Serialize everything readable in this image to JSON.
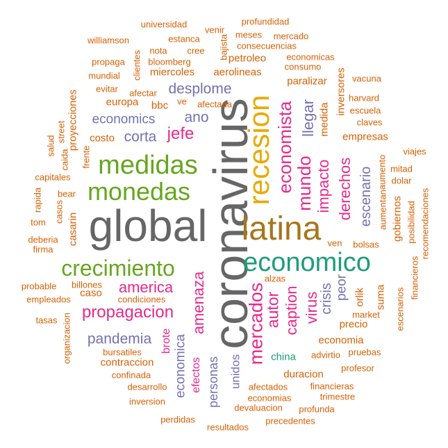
{
  "palette": {
    "gray": "#666666",
    "green": "#66a61e",
    "gold": "#e6ab02",
    "brown": "#a6761d",
    "teal": "#1b9e77",
    "magenta": "#e7298a",
    "purple": "#7570b3",
    "orange": "#d95f02"
  },
  "words": {
    "global": "global",
    "coronavirus": "coronavirus",
    "recesion": "recesion",
    "latina": "latina",
    "economico": "economico",
    "medidas": "medidas",
    "monedas": "monedas",
    "crecimiento": "crecimiento",
    "mercados": "mercados",
    "economista": "economista",
    "mundo": "mundo",
    "propagacion": "propagacion",
    "america": "america",
    "amenaza": "amenaza",
    "pandemia": "pandemia",
    "jefe": "jefe",
    "desplome": "desplome",
    "economics": "economics",
    "corta": "corta",
    "ano": "ano",
    "impacto": "impacto",
    "llegar": "llegar",
    "derechos": "derechos",
    "escenario": "escenario",
    "autor": "autor",
    "caption": "caption",
    "virus": "virus",
    "crisis": "crisis",
    "peor": "peor",
    "economica": "economica",
    "personas": "personas",
    "unidos": "unidos",
    "efectos": "efectos",
    "brote": "brote",
    "caso": "caso",
    "china": "china",
    "duracion": "duracion",
    "economia": "economia",
    "precio": "precio",
    "contraccion": "contraccion",
    "petroleo": "petroleo",
    "aerolineas": "aerolineas",
    "miercoles": "miercoles",
    "paralizar": "paralizar",
    "inversores": "inversores",
    "medida": "medida",
    "empresas": "empresas",
    "europa": "europa",
    "bbc": "bbc",
    "costo": "costo",
    "proyecciones": "proyecciones",
    "casarin": "casarin",
    "suma": "suma",
    "orlik": "orlik",
    "gobiernos": "gobiernos",
    "universidad": "universidad",
    "profundidad": "profundidad",
    "williamson": "williamson",
    "estanca": "estanca",
    "venir": "venir",
    "meses": "meses",
    "mercado": "mercado",
    "bajista": "bajista",
    "consecuencias": "consecuencias",
    "nota": "nota",
    "cree": "cree",
    "economicas": "economicas",
    "propaga": "propaga",
    "bloomberg": "bloomberg",
    "consumo": "consumo",
    "mundial": "mundial",
    "clientes": "clientes",
    "vacuna": "vacuna",
    "evitar": "evitar",
    "afectar": "afectar",
    "harvard": "harvard",
    "ve": "ve",
    "afectada": "afectada",
    "escuela": "escuela",
    "claves": "claves",
    "salud": "salud",
    "street": "street",
    "caida": "caida",
    "frente": "frente",
    "viajes": "viajes",
    "aumento": "aumento",
    "mitad": "mitad",
    "capitales": "capitales",
    "dolar": "dolar",
    "rapida": "rapida",
    "bear": "bear",
    "casos": "casos",
    "aumentan": "aumentan",
    "tom": "tom",
    "recomendaciones": "recomendaciones",
    "posibilidad": "posibilidad",
    "deberia": "deberia",
    "firma": "firma",
    "ven": "ven",
    "bolsas": "bolsas",
    "financieros": "financieros",
    "alzas": "alzas",
    "probable": "probable",
    "billones": "billones",
    "empleados": "empleados",
    "condiciones": "condiciones",
    "escenarios": "escenarios",
    "tasas": "tasas",
    "organizacion": "organizacion",
    "market": "market",
    "advirtio": "advirtio",
    "bursatiles": "bursatiles",
    "pruebas": "pruebas",
    "profesor": "profesor",
    "confinada": "confinada",
    "desarrollo": "desarrollo",
    "afectados": "afectados",
    "financieras": "financieras",
    "economias": "economias",
    "trimestre": "trimestre",
    "inversion": "inversion",
    "devaluacion": "devaluacion",
    "profunda": "profunda",
    "perdidas": "perdidas",
    "resultados": "resultados",
    "precedentes": "precedentes"
  }
}
